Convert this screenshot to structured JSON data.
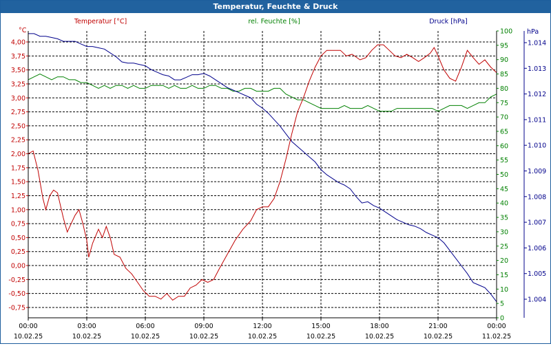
{
  "window": {
    "title": "Temperatur, Feuchte & Druck"
  },
  "colors": {
    "temperature": "#c00000",
    "humidity": "#008000",
    "pressure": "#00008b",
    "title_bar": "#21629f",
    "grid": "#000000"
  },
  "chart_data": {
    "type": "line",
    "title": "Temperatur, Feuchte & Druck",
    "legend_placement": "top",
    "grid": true,
    "x": {
      "label": "",
      "tick_times": [
        "00:00",
        "03:00",
        "06:00",
        "09:00",
        "12:00",
        "15:00",
        "18:00",
        "21:00",
        "00:00"
      ],
      "tick_dates": [
        "10.02.25",
        "10.02.25",
        "10.02.25",
        "10.02.25",
        "10.02.25",
        "10.02.25",
        "10.02.25",
        "10.02.25",
        "11.02.25"
      ],
      "range_hours": [
        0,
        24
      ]
    },
    "axes": {
      "temperature": {
        "label": "Temperatur [°C]",
        "unit": "°C",
        "range": [
          -0.75,
          4.0
        ],
        "ticks": [
          "4,00",
          "3,75",
          "3,50",
          "3,25",
          "3,00",
          "2,75",
          "2,50",
          "2,25",
          "2,00",
          "1,75",
          "1,50",
          "1,25",
          "1,00",
          "0,75",
          "0,50",
          "0,25",
          "0,00",
          "-0,25",
          "-0,50",
          "-0,75"
        ]
      },
      "humidity": {
        "label": "rel. Feuchte [%]",
        "unit": "%",
        "range": [
          0,
          100
        ],
        "ticks": [
          "100",
          "95",
          "90",
          "85",
          "80",
          "75",
          "70",
          "65",
          "60",
          "55",
          "50",
          "45",
          "40",
          "35",
          "30",
          "25",
          "20",
          "15",
          "10",
          "5",
          "0"
        ]
      },
      "pressure": {
        "label": "Druck [hPa]",
        "unit": "hPa",
        "range": [
          1003.5,
          1015.0
        ],
        "ticks": [
          "1.014",
          "1.013",
          "1.012",
          "1.011",
          "1.010",
          "1.009",
          "1.008",
          "1.007",
          "1.006",
          "1.005",
          "1.004"
        ]
      }
    },
    "series": [
      {
        "name": "Temperatur [°C]",
        "axis": "temperature",
        "points": [
          [
            0,
            2.0
          ],
          [
            0.25,
            2.05
          ],
          [
            0.5,
            1.7
          ],
          [
            0.75,
            1.2
          ],
          [
            0.9,
            1.0
          ],
          [
            1.1,
            1.25
          ],
          [
            1.3,
            1.35
          ],
          [
            1.5,
            1.3
          ],
          [
            1.8,
            0.85
          ],
          [
            2.0,
            0.6
          ],
          [
            2.2,
            0.75
          ],
          [
            2.4,
            0.9
          ],
          [
            2.6,
            1.0
          ],
          [
            2.8,
            0.75
          ],
          [
            3.0,
            0.45
          ],
          [
            3.1,
            0.15
          ],
          [
            3.3,
            0.4
          ],
          [
            3.6,
            0.65
          ],
          [
            3.8,
            0.5
          ],
          [
            4.0,
            0.7
          ],
          [
            4.2,
            0.5
          ],
          [
            4.4,
            0.2
          ],
          [
            4.7,
            0.15
          ],
          [
            5.0,
            -0.05
          ],
          [
            5.3,
            -0.15
          ],
          [
            5.6,
            -0.3
          ],
          [
            5.9,
            -0.45
          ],
          [
            6.2,
            -0.55
          ],
          [
            6.5,
            -0.55
          ],
          [
            6.8,
            -0.6
          ],
          [
            7.1,
            -0.5
          ],
          [
            7.4,
            -0.62
          ],
          [
            7.7,
            -0.55
          ],
          [
            8.0,
            -0.55
          ],
          [
            8.3,
            -0.4
          ],
          [
            8.6,
            -0.35
          ],
          [
            8.9,
            -0.25
          ],
          [
            9.2,
            -0.3
          ],
          [
            9.5,
            -0.25
          ],
          [
            9.8,
            -0.05
          ],
          [
            10.2,
            0.2
          ],
          [
            10.6,
            0.45
          ],
          [
            11.0,
            0.65
          ],
          [
            11.4,
            0.8
          ],
          [
            11.7,
            1.0
          ],
          [
            12.0,
            1.05
          ],
          [
            12.3,
            1.05
          ],
          [
            12.6,
            1.2
          ],
          [
            12.9,
            1.5
          ],
          [
            13.2,
            1.9
          ],
          [
            13.5,
            2.35
          ],
          [
            13.8,
            2.75
          ],
          [
            14.1,
            3.0
          ],
          [
            14.4,
            3.3
          ],
          [
            14.7,
            3.55
          ],
          [
            15.0,
            3.75
          ],
          [
            15.3,
            3.85
          ],
          [
            15.6,
            3.85
          ],
          [
            16.0,
            3.85
          ],
          [
            16.3,
            3.75
          ],
          [
            16.6,
            3.78
          ],
          [
            17.0,
            3.68
          ],
          [
            17.3,
            3.72
          ],
          [
            17.6,
            3.85
          ],
          [
            17.9,
            3.95
          ],
          [
            18.2,
            3.95
          ],
          [
            18.5,
            3.85
          ],
          [
            18.8,
            3.75
          ],
          [
            19.1,
            3.72
          ],
          [
            19.4,
            3.78
          ],
          [
            19.7,
            3.72
          ],
          [
            20.0,
            3.65
          ],
          [
            20.3,
            3.72
          ],
          [
            20.6,
            3.8
          ],
          [
            20.8,
            3.9
          ],
          [
            21.0,
            3.75
          ],
          [
            21.3,
            3.5
          ],
          [
            21.6,
            3.35
          ],
          [
            21.9,
            3.3
          ],
          [
            22.2,
            3.55
          ],
          [
            22.5,
            3.85
          ],
          [
            22.8,
            3.72
          ],
          [
            23.1,
            3.6
          ],
          [
            23.4,
            3.68
          ],
          [
            23.7,
            3.55
          ],
          [
            24.0,
            3.45
          ]
        ]
      },
      {
        "name": "rel. Feuchte [%]",
        "axis": "humidity",
        "points": [
          [
            0,
            83
          ],
          [
            0.3,
            84
          ],
          [
            0.6,
            85
          ],
          [
            0.9,
            84
          ],
          [
            1.2,
            83
          ],
          [
            1.5,
            84
          ],
          [
            1.8,
            84
          ],
          [
            2.1,
            83
          ],
          [
            2.4,
            83
          ],
          [
            2.7,
            82
          ],
          [
            3.0,
            82
          ],
          [
            3.3,
            81
          ],
          [
            3.6,
            80
          ],
          [
            3.9,
            81
          ],
          [
            4.2,
            80
          ],
          [
            4.5,
            81
          ],
          [
            4.8,
            81
          ],
          [
            5.1,
            80
          ],
          [
            5.4,
            81
          ],
          [
            5.7,
            80
          ],
          [
            6.0,
            80
          ],
          [
            6.3,
            81
          ],
          [
            6.6,
            81
          ],
          [
            6.9,
            81
          ],
          [
            7.2,
            80
          ],
          [
            7.5,
            81
          ],
          [
            7.8,
            80
          ],
          [
            8.1,
            80
          ],
          [
            8.4,
            81
          ],
          [
            8.7,
            80
          ],
          [
            9.0,
            80
          ],
          [
            9.3,
            81
          ],
          [
            9.6,
            81
          ],
          [
            9.9,
            80
          ],
          [
            10.2,
            80
          ],
          [
            10.5,
            79
          ],
          [
            10.8,
            79
          ],
          [
            11.1,
            80
          ],
          [
            11.4,
            80
          ],
          [
            11.7,
            79
          ],
          [
            12.0,
            79
          ],
          [
            12.3,
            79
          ],
          [
            12.6,
            80
          ],
          [
            12.9,
            80
          ],
          [
            13.2,
            78
          ],
          [
            13.5,
            77
          ],
          [
            13.8,
            76
          ],
          [
            14.1,
            76
          ],
          [
            14.4,
            75
          ],
          [
            14.7,
            74
          ],
          [
            15.0,
            73
          ],
          [
            15.3,
            73
          ],
          [
            15.6,
            73
          ],
          [
            15.9,
            73
          ],
          [
            16.2,
            74
          ],
          [
            16.5,
            73
          ],
          [
            16.8,
            73
          ],
          [
            17.1,
            73
          ],
          [
            17.4,
            74
          ],
          [
            17.7,
            73
          ],
          [
            18.0,
            72
          ],
          [
            18.3,
            72
          ],
          [
            18.6,
            72
          ],
          [
            18.9,
            73
          ],
          [
            19.2,
            73
          ],
          [
            19.5,
            73
          ],
          [
            19.8,
            73
          ],
          [
            20.1,
            73
          ],
          [
            20.4,
            73
          ],
          [
            20.7,
            73
          ],
          [
            21.0,
            72
          ],
          [
            21.3,
            73
          ],
          [
            21.6,
            74
          ],
          [
            21.9,
            74
          ],
          [
            22.2,
            74
          ],
          [
            22.5,
            73
          ],
          [
            22.8,
            74
          ],
          [
            23.1,
            75
          ],
          [
            23.4,
            75
          ],
          [
            23.7,
            77
          ],
          [
            24.0,
            78
          ]
        ]
      },
      {
        "name": "Druck [hPa]",
        "axis": "pressure",
        "points": [
          [
            0,
            1014.35
          ],
          [
            0.3,
            1014.35
          ],
          [
            0.6,
            1014.25
          ],
          [
            0.9,
            1014.25
          ],
          [
            1.2,
            1014.2
          ],
          [
            1.5,
            1014.15
          ],
          [
            1.8,
            1014.05
          ],
          [
            2.1,
            1014.05
          ],
          [
            2.4,
            1014.05
          ],
          [
            2.7,
            1013.95
          ],
          [
            3.0,
            1013.85
          ],
          [
            3.3,
            1013.85
          ],
          [
            3.6,
            1013.8
          ],
          [
            3.9,
            1013.75
          ],
          [
            4.2,
            1013.6
          ],
          [
            4.5,
            1013.45
          ],
          [
            4.8,
            1013.25
          ],
          [
            5.1,
            1013.2
          ],
          [
            5.4,
            1013.2
          ],
          [
            5.7,
            1013.15
          ],
          [
            6.0,
            1013.1
          ],
          [
            6.3,
            1012.95
          ],
          [
            6.6,
            1012.85
          ],
          [
            6.9,
            1012.75
          ],
          [
            7.2,
            1012.7
          ],
          [
            7.5,
            1012.55
          ],
          [
            7.8,
            1012.55
          ],
          [
            8.1,
            1012.65
          ],
          [
            8.4,
            1012.75
          ],
          [
            8.7,
            1012.75
          ],
          [
            9.0,
            1012.8
          ],
          [
            9.3,
            1012.7
          ],
          [
            9.6,
            1012.55
          ],
          [
            9.9,
            1012.4
          ],
          [
            10.2,
            1012.25
          ],
          [
            10.5,
            1012.15
          ],
          [
            10.8,
            1012.05
          ],
          [
            11.1,
            1011.95
          ],
          [
            11.4,
            1011.85
          ],
          [
            11.7,
            1011.6
          ],
          [
            12.0,
            1011.45
          ],
          [
            12.3,
            1011.25
          ],
          [
            12.6,
            1011.0
          ],
          [
            12.9,
            1010.75
          ],
          [
            13.2,
            1010.45
          ],
          [
            13.5,
            1010.15
          ],
          [
            13.8,
            1009.95
          ],
          [
            14.1,
            1009.75
          ],
          [
            14.4,
            1009.55
          ],
          [
            14.7,
            1009.35
          ],
          [
            15.0,
            1009.05
          ],
          [
            15.3,
            1008.85
          ],
          [
            15.6,
            1008.7
          ],
          [
            15.9,
            1008.55
          ],
          [
            16.2,
            1008.45
          ],
          [
            16.5,
            1008.3
          ],
          [
            16.8,
            1008.0
          ],
          [
            17.1,
            1007.75
          ],
          [
            17.4,
            1007.8
          ],
          [
            17.7,
            1007.65
          ],
          [
            18.0,
            1007.55
          ],
          [
            18.3,
            1007.4
          ],
          [
            18.6,
            1007.25
          ],
          [
            18.9,
            1007.1
          ],
          [
            19.2,
            1007.0
          ],
          [
            19.5,
            1006.9
          ],
          [
            19.8,
            1006.85
          ],
          [
            20.1,
            1006.75
          ],
          [
            20.4,
            1006.6
          ],
          [
            20.7,
            1006.5
          ],
          [
            21.0,
            1006.4
          ],
          [
            21.3,
            1006.2
          ],
          [
            21.6,
            1005.9
          ],
          [
            21.9,
            1005.6
          ],
          [
            22.2,
            1005.3
          ],
          [
            22.5,
            1005.0
          ],
          [
            22.8,
            1004.65
          ],
          [
            23.1,
            1004.55
          ],
          [
            23.4,
            1004.45
          ],
          [
            23.7,
            1004.2
          ],
          [
            24.0,
            1003.9
          ]
        ]
      }
    ]
  }
}
